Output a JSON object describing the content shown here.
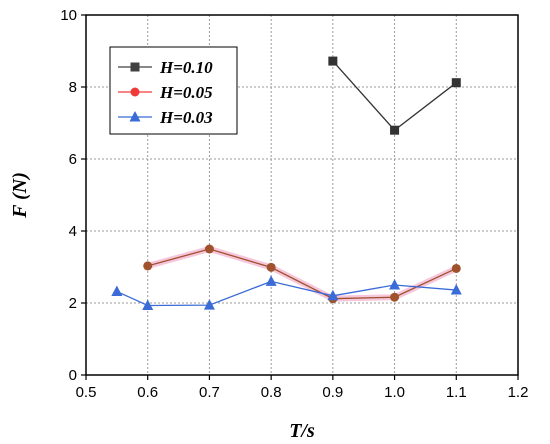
{
  "chart_data": {
    "type": "line",
    "title": "",
    "xlabel": "T/s",
    "ylabel": "F  (N)",
    "xlim": [
      0.5,
      1.2
    ],
    "ylim": [
      0,
      10
    ],
    "xticks": [
      0.5,
      0.6,
      0.7,
      0.8,
      0.9,
      1.0,
      1.1,
      1.2
    ],
    "xtick_labels": [
      "0.5",
      "0.6",
      "0.7",
      "0.8",
      "0.9",
      "1.0",
      "1.1",
      "1.2"
    ],
    "yticks": [
      0,
      2,
      4,
      6,
      8,
      10
    ],
    "ytick_labels": [
      "0",
      "2",
      "4",
      "6",
      "8",
      "10"
    ],
    "grid": true,
    "legend_position": "top-left",
    "series": [
      {
        "name": "H=0.10",
        "marker": "square",
        "color": "#333333",
        "x": [
          0.9,
          1.0,
          1.1
        ],
        "y": [
          8.72,
          6.8,
          8.12
        ]
      },
      {
        "name": "H=0.05",
        "marker": "circle",
        "color": "#a0522d",
        "x": [
          0.6,
          0.7,
          0.8,
          0.9,
          1.0,
          1.1
        ],
        "y": [
          3.03,
          3.5,
          2.99,
          2.12,
          2.16,
          2.96
        ]
      },
      {
        "name": "H=0.03",
        "marker": "triangle",
        "color": "#3a6bd6",
        "x": [
          0.55,
          0.6,
          0.7,
          0.8,
          0.9,
          1.0,
          1.1
        ],
        "y": [
          2.32,
          1.93,
          1.94,
          2.6,
          2.2,
          2.5,
          2.36
        ]
      }
    ]
  }
}
